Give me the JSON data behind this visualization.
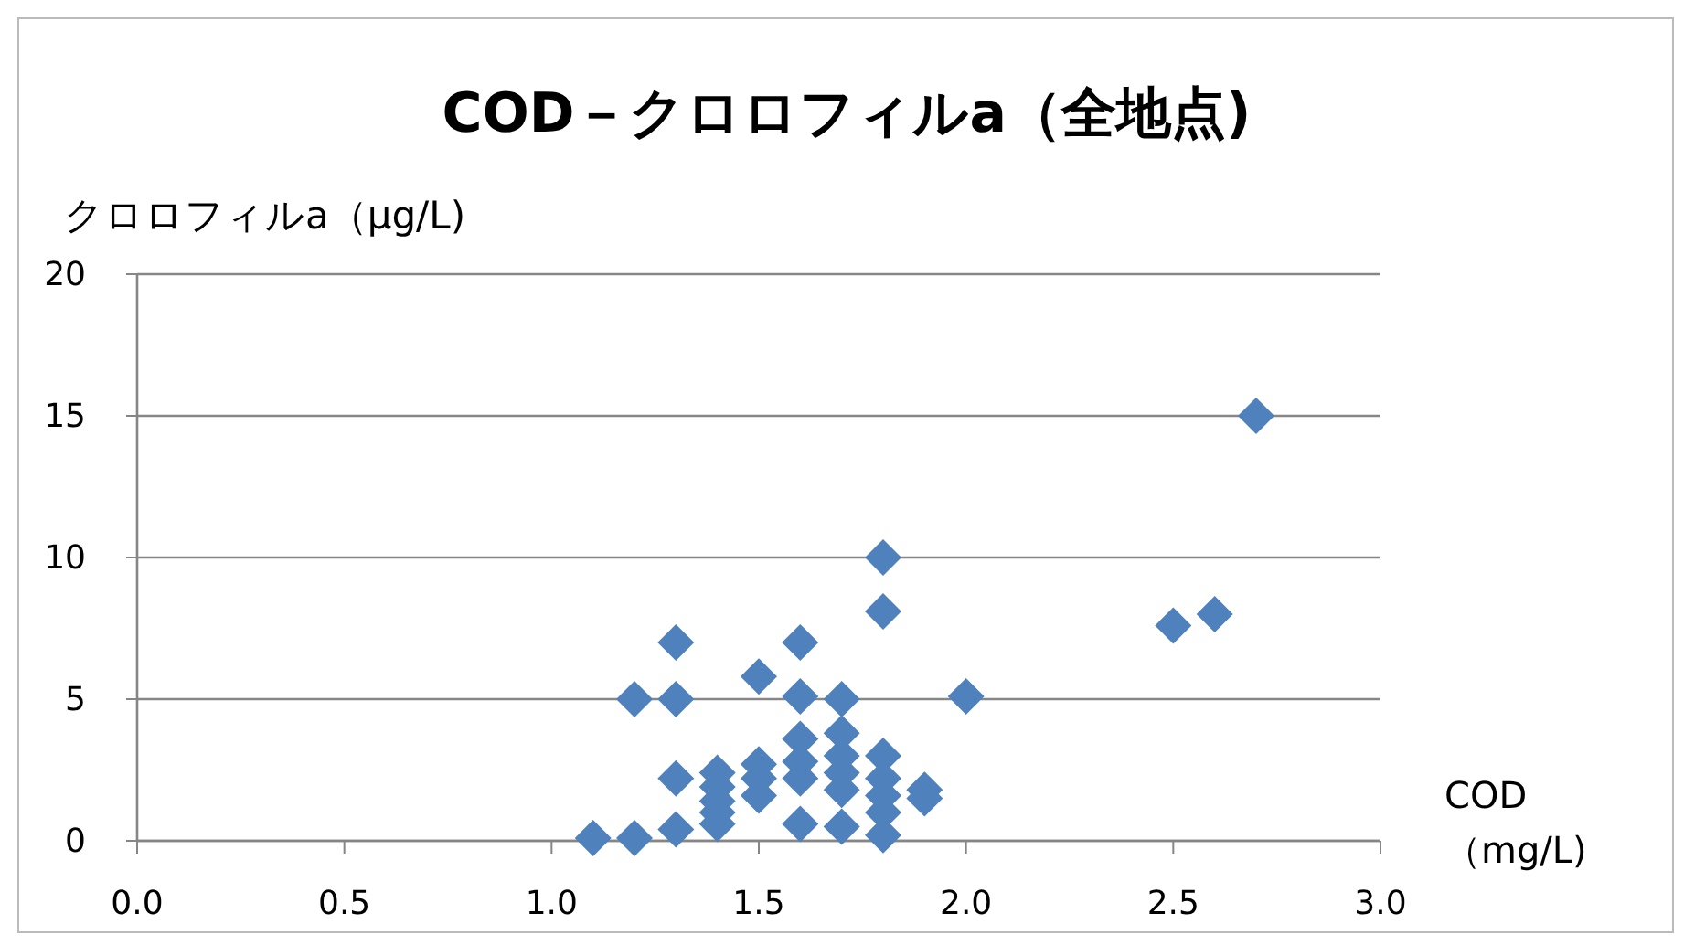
{
  "chart_data": {
    "type": "scatter",
    "title": "COD－クロロフィルa（全地点)",
    "xlabel": "COD（mg/L)",
    "ylabel": "クロロフィルa（μg/L)",
    "x": [
      1.1,
      1.2,
      1.2,
      1.3,
      1.3,
      1.3,
      1.3,
      1.4,
      1.4,
      1.4,
      1.4,
      1.4,
      1.5,
      1.5,
      1.5,
      1.5,
      1.6,
      1.6,
      1.6,
      1.6,
      1.6,
      1.6,
      1.7,
      1.7,
      1.7,
      1.7,
      1.7,
      1.7,
      1.8,
      1.8,
      1.8,
      1.8,
      1.8,
      1.8,
      1.8,
      1.9,
      1.9,
      2.0,
      2.5,
      2.6,
      2.7
    ],
    "series": [
      {
        "color": "#4f81bd",
        "values": [
          0.1,
          0.1,
          5.0,
          0.4,
          2.2,
          5.0,
          7.0,
          0.6,
          1.0,
          1.4,
          1.9,
          2.4,
          1.6,
          2.2,
          2.7,
          5.8,
          0.6,
          2.2,
          2.8,
          3.6,
          5.1,
          7.0,
          0.5,
          1.8,
          2.4,
          3.0,
          3.8,
          5.0,
          0.2,
          1.0,
          1.6,
          2.2,
          3.0,
          8.1,
          10.0,
          1.5,
          1.8,
          5.1,
          7.6,
          8.0,
          15.0
        ]
      }
    ],
    "xlim": [
      0,
      3
    ],
    "xticks": [
      {
        "value": 0,
        "label": "0.0"
      },
      {
        "value": 0.5,
        "label": "0.5"
      },
      {
        "value": 1,
        "label": "1.0"
      },
      {
        "value": 1.5,
        "label": "1.5"
      },
      {
        "value": 2,
        "label": "2.0"
      },
      {
        "value": 2.5,
        "label": "2.5"
      },
      {
        "value": 3,
        "label": "3.0"
      }
    ],
    "ylim": [
      0,
      20
    ],
    "yticks": [
      0,
      5,
      10,
      15,
      20
    ],
    "grid": "y",
    "marker": "diamond"
  }
}
